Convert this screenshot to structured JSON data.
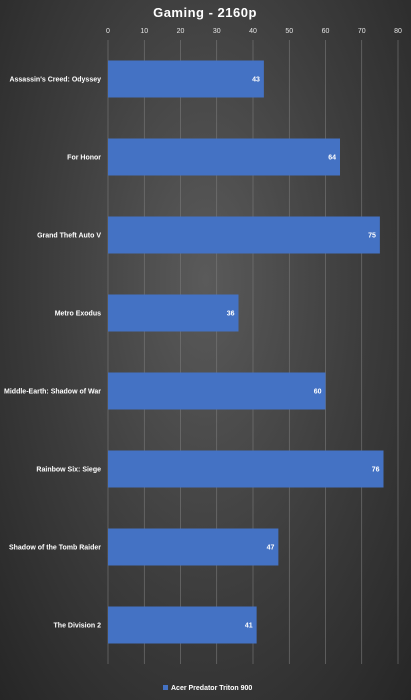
{
  "chart_data": {
    "type": "bar",
    "orientation": "horizontal",
    "title": "Gaming - 2160p",
    "categories": [
      "Assassin's Creed: Odyssey",
      "For Honor",
      "Grand Theft Auto V",
      "Metro Exodus",
      "Middle-Earth: Shadow of War",
      "Rainbow Six: Siege",
      "Shadow of the Tomb Raider",
      "The Division 2"
    ],
    "series": [
      {
        "name": "Acer Predator Triton 900",
        "values": [
          43,
          64,
          75,
          36,
          60,
          76,
          47,
          41
        ],
        "color": "#4472C4"
      }
    ],
    "xlim": [
      0,
      80
    ],
    "xticks": [
      0,
      10,
      20,
      30,
      40,
      50,
      60,
      70,
      80
    ],
    "xaxis_position": "top",
    "grid": true,
    "legend_position": "bottom",
    "data_labels": true
  }
}
